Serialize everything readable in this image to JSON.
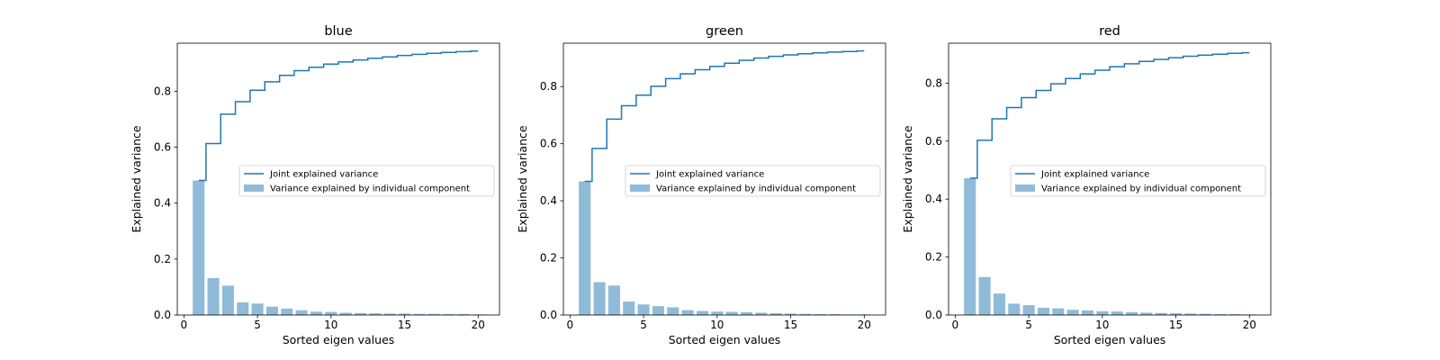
{
  "colors": {
    "line": "#1f77b4",
    "bar": "#1f77b4",
    "bar_alpha": 0.5,
    "axis": "#000000",
    "background": "#ffffff"
  },
  "chart_data": [
    {
      "type": "bar",
      "title": "blue",
      "xlabel": "Sorted eigen values",
      "ylabel": "Explained variance",
      "xlim": [
        -0.45,
        21.45
      ],
      "ylim": [
        0,
        0.972
      ],
      "xticks": [
        0,
        5,
        10,
        15,
        20
      ],
      "yticks": [
        0.0,
        0.2,
        0.4,
        0.6,
        0.8
      ],
      "ytick_labels": [
        "0.0",
        "0.2",
        "0.4",
        "0.6",
        "0.8"
      ],
      "legend": {
        "position": "center-right",
        "entries": [
          "Joint explained variance",
          "Variance explained by individual component"
        ]
      },
      "x": [
        1,
        2,
        3,
        4,
        5,
        6,
        7,
        8,
        9,
        10,
        11,
        12,
        13,
        14,
        15,
        16,
        17,
        18,
        19,
        20
      ],
      "series": [
        {
          "name": "Variance explained by individual component",
          "kind": "bar",
          "values": [
            0.481,
            0.132,
            0.105,
            0.045,
            0.041,
            0.03,
            0.023,
            0.017,
            0.012,
            0.011,
            0.008,
            0.007,
            0.006,
            0.005,
            0.005,
            0.004,
            0.004,
            0.003,
            0.003,
            0.002
          ]
        },
        {
          "name": "Joint explained variance",
          "kind": "step",
          "values": [
            0.481,
            0.613,
            0.718,
            0.763,
            0.804,
            0.834,
            0.857,
            0.874,
            0.886,
            0.897,
            0.905,
            0.912,
            0.918,
            0.923,
            0.928,
            0.932,
            0.936,
            0.939,
            0.942,
            0.944
          ]
        }
      ]
    },
    {
      "type": "bar",
      "title": "green",
      "xlabel": "Sorted eigen values",
      "ylabel": "Explained variance",
      "xlim": [
        -0.45,
        21.45
      ],
      "ylim": [
        0,
        0.952
      ],
      "xticks": [
        0,
        5,
        10,
        15,
        20
      ],
      "yticks": [
        0.0,
        0.2,
        0.4,
        0.6,
        0.8
      ],
      "ytick_labels": [
        "0.0",
        "0.2",
        "0.4",
        "0.6",
        "0.8"
      ],
      "legend": {
        "position": "center-right",
        "entries": [
          "Joint explained variance",
          "Variance explained by individual component"
        ]
      },
      "x": [
        1,
        2,
        3,
        4,
        5,
        6,
        7,
        8,
        9,
        10,
        11,
        12,
        13,
        14,
        15,
        16,
        17,
        18,
        19,
        20
      ],
      "series": [
        {
          "name": "Variance explained by individual component",
          "kind": "bar",
          "values": [
            0.468,
            0.115,
            0.103,
            0.047,
            0.037,
            0.031,
            0.027,
            0.017,
            0.014,
            0.012,
            0.011,
            0.01,
            0.008,
            0.006,
            0.005,
            0.004,
            0.003,
            0.003,
            0.002,
            0.002
          ]
        },
        {
          "name": "Joint explained variance",
          "kind": "step",
          "values": [
            0.468,
            0.583,
            0.686,
            0.733,
            0.77,
            0.801,
            0.828,
            0.845,
            0.859,
            0.871,
            0.882,
            0.892,
            0.9,
            0.906,
            0.911,
            0.915,
            0.918,
            0.921,
            0.923,
            0.925
          ]
        }
      ]
    },
    {
      "type": "bar",
      "title": "red",
      "xlabel": "Sorted eigen values",
      "ylabel": "Explained variance",
      "xlim": [
        -0.45,
        21.45
      ],
      "ylim": [
        0,
        0.938
      ],
      "xticks": [
        0,
        5,
        10,
        15,
        20
      ],
      "yticks": [
        0.0,
        0.2,
        0.4,
        0.6,
        0.8
      ],
      "ytick_labels": [
        "0.0",
        "0.2",
        "0.4",
        "0.6",
        "0.8"
      ],
      "legend": {
        "position": "center-right",
        "entries": [
          "Joint explained variance",
          "Variance explained by individual component"
        ]
      },
      "x": [
        1,
        2,
        3,
        4,
        5,
        6,
        7,
        8,
        9,
        10,
        11,
        12,
        13,
        14,
        15,
        16,
        17,
        18,
        19,
        20
      ],
      "series": [
        {
          "name": "Variance explained by individual component",
          "kind": "bar",
          "values": [
            0.472,
            0.131,
            0.074,
            0.039,
            0.034,
            0.025,
            0.023,
            0.018,
            0.016,
            0.013,
            0.012,
            0.01,
            0.008,
            0.007,
            0.006,
            0.005,
            0.004,
            0.003,
            0.003,
            0.002
          ]
        },
        {
          "name": "Joint explained variance",
          "kind": "step",
          "values": [
            0.472,
            0.603,
            0.677,
            0.716,
            0.75,
            0.775,
            0.798,
            0.816,
            0.832,
            0.845,
            0.857,
            0.867,
            0.875,
            0.882,
            0.888,
            0.893,
            0.897,
            0.9,
            0.903,
            0.905
          ]
        }
      ]
    }
  ]
}
